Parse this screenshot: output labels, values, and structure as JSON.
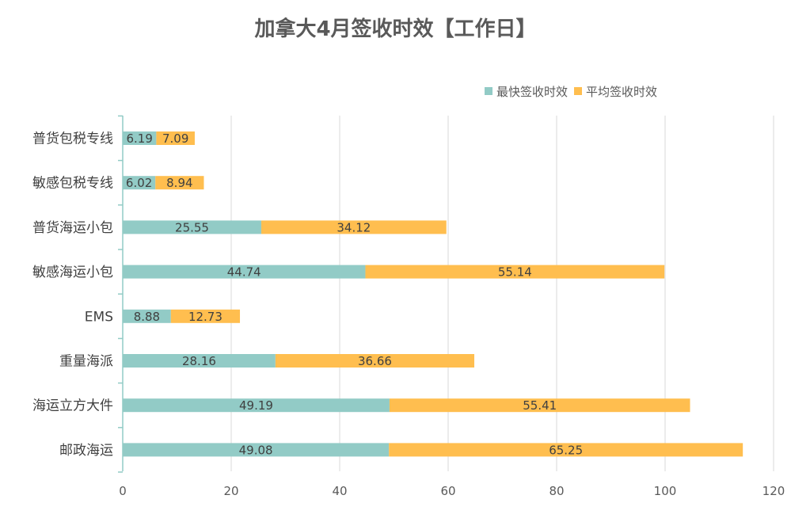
{
  "chart_data": {
    "type": "bar",
    "orientation": "horizontal",
    "stacked": true,
    "title": "加拿大4月签收时效【工作日】",
    "xlabel": "",
    "ylabel": "",
    "xlim": [
      0,
      120
    ],
    "xticks": [
      0,
      20,
      40,
      60,
      80,
      100,
      120
    ],
    "grid": true,
    "legend_position": "top-right",
    "categories": [
      "普货包税专线",
      "敏感包税专线",
      "普货海运小包",
      "敏感海运小包",
      "EMS",
      "重量海派",
      "海运立方大件",
      "邮政海运"
    ],
    "series": [
      {
        "name": "最快签收时效",
        "color": "#92CBC6",
        "values": [
          6.19,
          6.02,
          25.55,
          44.74,
          8.88,
          28.16,
          49.19,
          49.08
        ]
      },
      {
        "name": "平均签收时效",
        "color": "#FFBE4F",
        "values": [
          7.09,
          8.94,
          34.12,
          55.14,
          12.73,
          36.66,
          55.41,
          65.25
        ]
      }
    ]
  },
  "colors": {
    "axis": "#92CBC6",
    "grid": "#D9D9D9",
    "text": "#595959",
    "label": "#404040"
  }
}
